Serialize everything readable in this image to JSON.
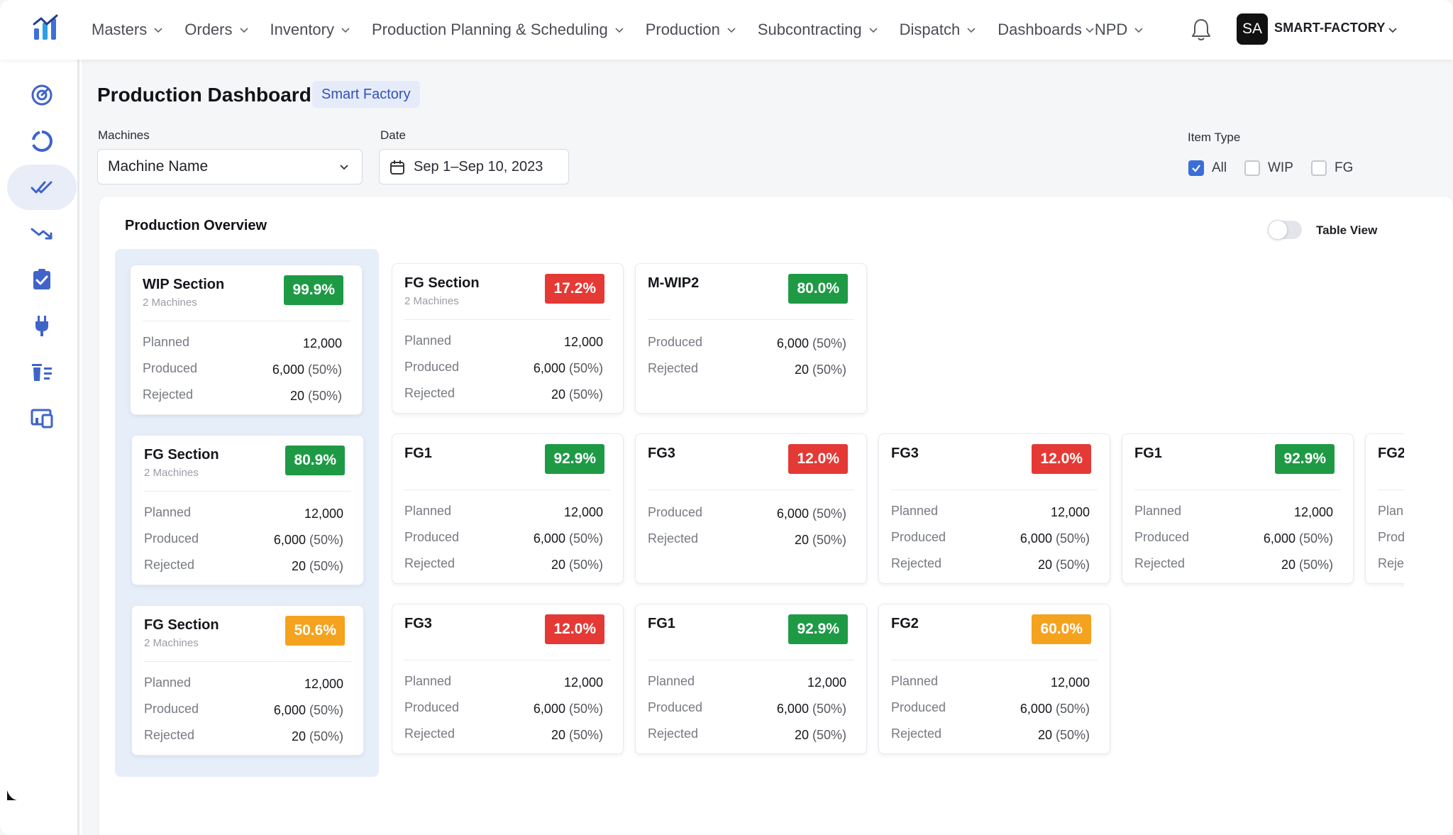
{
  "nav": {
    "items": [
      {
        "label": "Masters"
      },
      {
        "label": "Orders"
      },
      {
        "label": "Inventory"
      },
      {
        "label": "Production Planning & Scheduling"
      },
      {
        "label": "Production"
      },
      {
        "label": "Subcontracting"
      },
      {
        "label": "Dispatch"
      },
      {
        "label": "Dashboards"
      },
      {
        "label": "NPD"
      }
    ],
    "user_initials": "SA",
    "user_name": "SMART-FACTORY"
  },
  "sidebar": {
    "items": [
      {
        "icon": "gauge-icon"
      },
      {
        "icon": "donut-chart-icon"
      },
      {
        "icon": "double-check-icon",
        "active": true
      },
      {
        "icon": "trend-down-icon"
      },
      {
        "icon": "clipboard-check-icon"
      },
      {
        "icon": "plug-icon"
      },
      {
        "icon": "delete-list-icon"
      },
      {
        "icon": "devices-icon"
      }
    ]
  },
  "page": {
    "title": "Production Dashboard",
    "badge": "Smart Factory"
  },
  "filters": {
    "machines_label": "Machines",
    "machines_value": "Machine Name",
    "date_label": "Date",
    "date_value": "Sep 1–Sep 10, 2023",
    "item_type_label": "Item Type",
    "item_types": [
      {
        "label": "All",
        "checked": true
      },
      {
        "label": "WIP",
        "checked": false
      },
      {
        "label": "FG",
        "checked": false
      }
    ]
  },
  "overview": {
    "title": "Production Overview",
    "table_view_label": "Table View",
    "table_view_on": false,
    "labels": {
      "planned": "Planned",
      "produced": "Produced",
      "rejected": "Rejected"
    },
    "sections": [
      {
        "name": "WIP Section",
        "sub": "2 Machines",
        "pct": "99.9%",
        "status": "green",
        "planned": "12,000",
        "produced": "6,000",
        "produced_pct": "(50%)",
        "rejected": "20",
        "rejected_pct": "(50%)"
      },
      {
        "name": "FG Section",
        "sub": "2 Machines",
        "pct": "80.9%",
        "status": "green",
        "planned": "12,000",
        "produced": "6,000",
        "produced_pct": "(50%)",
        "rejected": "20",
        "rejected_pct": "(50%)"
      },
      {
        "name": "FG Section",
        "sub": "2 Machines",
        "pct": "50.6%",
        "status": "orange",
        "planned": "12,000",
        "produced": "6,000",
        "produced_pct": "(50%)",
        "rejected": "20",
        "rejected_pct": "(50%)"
      }
    ],
    "rows": [
      [
        {
          "name": "FG Section",
          "sub": "2 Machines",
          "pct": "17.2%",
          "status": "red",
          "planned": "12,000",
          "produced": "6,000",
          "produced_pct": "(50%)",
          "rejected": "20",
          "rejected_pct": "(50%)"
        },
        {
          "name": "M-WIP2",
          "pct": "80.0%",
          "status": "green",
          "produced": "6,000",
          "produced_pct": "(50%)",
          "rejected": "20",
          "rejected_pct": "(50%)"
        }
      ],
      [
        {
          "name": "FG1",
          "pct": "92.9%",
          "status": "green",
          "planned": "12,000",
          "produced": "6,000",
          "produced_pct": "(50%)",
          "rejected": "20",
          "rejected_pct": "(50%)"
        },
        {
          "name": "FG3",
          "pct": "12.0%",
          "status": "red",
          "produced": "6,000",
          "produced_pct": "(50%)",
          "rejected": "20",
          "rejected_pct": "(50%)"
        },
        {
          "name": "FG3",
          "pct": "12.0%",
          "status": "red",
          "planned": "12,000",
          "produced": "6,000",
          "produced_pct": "(50%)",
          "rejected": "20",
          "rejected_pct": "(50%)"
        },
        {
          "name": "FG1",
          "pct": "92.9%",
          "status": "green",
          "planned": "12,000",
          "produced": "6,000",
          "produced_pct": "(50%)",
          "rejected": "20",
          "rejected_pct": "(50%)"
        },
        {
          "name": "FG2",
          "pct": "",
          "status": "",
          "planned": "",
          "produced": "",
          "produced_pct": "",
          "rejected": "",
          "rejected_pct": ""
        }
      ],
      [
        {
          "name": "FG3",
          "pct": "12.0%",
          "status": "red",
          "planned": "12,000",
          "produced": "6,000",
          "produced_pct": "(50%)",
          "rejected": "20",
          "rejected_pct": "(50%)"
        },
        {
          "name": "FG1",
          "pct": "92.9%",
          "status": "green",
          "planned": "12,000",
          "produced": "6,000",
          "produced_pct": "(50%)",
          "rejected": "20",
          "rejected_pct": "(50%)"
        },
        {
          "name": "FG2",
          "pct": "60.0%",
          "status": "orange",
          "planned": "12,000",
          "produced": "6,000",
          "produced_pct": "(50%)",
          "rejected": "20",
          "rejected_pct": "(50%)"
        }
      ]
    ]
  },
  "colors": {
    "green": "#1e9a45",
    "red": "#e53935",
    "orange": "#f5a21f",
    "accent": "#3a6fd8",
    "nav_icon": "#3f63c9"
  }
}
